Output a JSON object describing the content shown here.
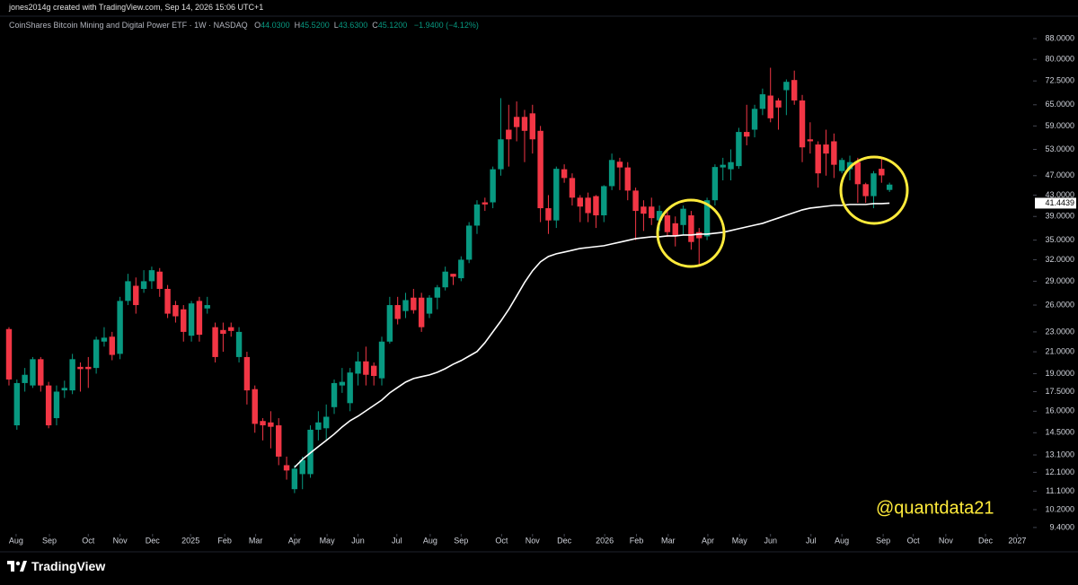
{
  "credit": "jones2014g created with TradingView.com, Sep 14, 2026 15:06 UTC+1",
  "brand": "TradingView",
  "chart_data": {
    "type": "candlestick",
    "title": "CoinShares Bitcoin Mining and Digital Power ETF · 1W · NASDAQ",
    "ohlc": [
      {
        "key": "O",
        "value": "44.0300"
      },
      {
        "key": "H",
        "value": "45.5200"
      },
      {
        "key": "L",
        "value": "43.6300"
      },
      {
        "key": "C",
        "value": "45.1200"
      }
    ],
    "change": "−1.9400 (−4.12%)",
    "annotation": "@quantdata21",
    "log_y": true,
    "background": "#000000",
    "categories": [
      null,
      null,
      null,
      null,
      null,
      null,
      null,
      null,
      null,
      null,
      null,
      null,
      null,
      null,
      null,
      null,
      null,
      null,
      null,
      null,
      null,
      null,
      null,
      null,
      null,
      null,
      null,
      null,
      null,
      null,
      null,
      null,
      null,
      null,
      null,
      null,
      null,
      null,
      null,
      null,
      null,
      null,
      null,
      null,
      null,
      null,
      null,
      null,
      null,
      null,
      null,
      null,
      null,
      null,
      null,
      null,
      null,
      null,
      null,
      null,
      null,
      null,
      null,
      null,
      null,
      null,
      null,
      null,
      null,
      null,
      null,
      null,
      null,
      null,
      null,
      null,
      null,
      null,
      null,
      null,
      null,
      null,
      null,
      null,
      null,
      null,
      null,
      null,
      null,
      null,
      null,
      null,
      null,
      null,
      null,
      null,
      null,
      null,
      null,
      null,
      null,
      null,
      null,
      null,
      null,
      null,
      null,
      null,
      null,
      null,
      null,
      null
    ],
    "xlim": [
      -1.13,
      129.1
    ],
    "xticks": [
      {
        "value": 0.9,
        "label": "Aug"
      },
      {
        "value": 5.1,
        "label": "Sep"
      },
      {
        "value": 10.0,
        "label": "Oct"
      },
      {
        "value": 14.0,
        "label": "Nov"
      },
      {
        "value": 18.1,
        "label": "Dec"
      },
      {
        "value": 22.9,
        "label": "2025"
      },
      {
        "value": 27.2,
        "label": "Feb"
      },
      {
        "value": 31.1,
        "label": "Mar"
      },
      {
        "value": 36.0,
        "label": "Apr"
      },
      {
        "value": 40.1,
        "label": "May"
      },
      {
        "value": 44.0,
        "label": "Jun"
      },
      {
        "value": 48.9,
        "label": "Jul"
      },
      {
        "value": 53.1,
        "label": "Aug"
      },
      {
        "value": 57.0,
        "label": "Sep"
      },
      {
        "value": 62.1,
        "label": "Oct"
      },
      {
        "value": 66.0,
        "label": "Nov"
      },
      {
        "value": 70.0,
        "label": "Dec"
      },
      {
        "value": 75.1,
        "label": "2026"
      },
      {
        "value": 79.1,
        "label": "Feb"
      },
      {
        "value": 83.1,
        "label": "Mar"
      },
      {
        "value": 88.1,
        "label": "Apr"
      },
      {
        "value": 92.1,
        "label": "May"
      },
      {
        "value": 96.0,
        "label": "Jun"
      },
      {
        "value": 101.1,
        "label": "Jul"
      },
      {
        "value": 105.0,
        "label": "Aug"
      },
      {
        "value": 110.2,
        "label": "Sep"
      },
      {
        "value": 114.0,
        "label": "Oct"
      },
      {
        "value": 118.1,
        "label": "Nov"
      },
      {
        "value": 123.1,
        "label": "Dec"
      },
      {
        "value": 127.1,
        "label": "2027"
      }
    ],
    "ylim": [
      9.13,
      97.5
    ],
    "yticks": [
      {
        "value": 88,
        "label": "88.0000"
      },
      {
        "value": 80,
        "label": "80.0000"
      },
      {
        "value": 72.5,
        "label": "72.5000"
      },
      {
        "value": 65,
        "label": "65.0000"
      },
      {
        "value": 59,
        "label": "59.0000"
      },
      {
        "value": 53,
        "label": "53.0000"
      },
      {
        "value": 47,
        "label": "47.0000"
      },
      {
        "value": 43,
        "label": "43.0000"
      },
      {
        "value": 39,
        "label": "39.0000"
      },
      {
        "value": 35,
        "label": "35.0000"
      },
      {
        "value": 32,
        "label": "32.0000"
      },
      {
        "value": 29,
        "label": "29.0000"
      },
      {
        "value": 26,
        "label": "26.0000"
      },
      {
        "value": 23,
        "label": "23.0000"
      },
      {
        "value": 21,
        "label": "21.0000"
      },
      {
        "value": 19,
        "label": "19.0000"
      },
      {
        "value": 17.5,
        "label": "17.5000"
      },
      {
        "value": 16,
        "label": "16.0000"
      },
      {
        "value": 14.5,
        "label": "14.5000"
      },
      {
        "value": 13.1,
        "label": "13.1000"
      },
      {
        "value": 12.1,
        "label": "12.1000"
      },
      {
        "value": 11.1,
        "label": "11.1000"
      },
      {
        "value": 10.2,
        "label": "10.2000"
      },
      {
        "value": 9.4,
        "label": "9.4000"
      }
    ],
    "series": [
      {
        "type": "candlestick",
        "up_color": "#089981",
        "down_color": "#f23645",
        "open": [
          23.3,
          15,
          18.2,
          18,
          20.3,
          18,
          15.5,
          17.6,
          17.6,
          19.6,
          19.6,
          19.5,
          22,
          22.5,
          20.8,
          26.5,
          28.4,
          28,
          29,
          30.3,
          28,
          26,
          25.5,
          22.6,
          26.5,
          25.6,
          23.5,
          23.2,
          23.5,
          20.5,
          20.5,
          17.7,
          15.3,
          15.2,
          15,
          12.5,
          11.2,
          12,
          12,
          14.7,
          14.8,
          16.3,
          18,
          16.6,
          19,
          20.1,
          19.7,
          18.6,
          22,
          26,
          25.3,
          26.9,
          26.9,
          25,
          26.9,
          28.2,
          30,
          29.4,
          32,
          37.4,
          41.6,
          41.6,
          48.4,
          58,
          61.5,
          61.5,
          62.5,
          57.7,
          40.5,
          38.3,
          48.4,
          46.5,
          42.5,
          42.5,
          42.8,
          39.2,
          44.8,
          50.1,
          48.8,
          43.9,
          40.8,
          40.8,
          38.3,
          39.2,
          37.8,
          37.5,
          39.2,
          36.3,
          35.6,
          42,
          48.8,
          48.4,
          49.1,
          57.4,
          58,
          63.8,
          67.8,
          66.3,
          69.5,
          72.8,
          66.3,
          55.5,
          54.2,
          54.2,
          55,
          48,
          48.4,
          50,
          45.2,
          42.8,
          48.5,
          44.03
        ],
        "high": [
          23.5,
          18.5,
          19.5,
          20.5,
          20.5,
          18.3,
          18,
          18.4,
          20.8,
          20,
          20.5,
          22.5,
          23.5,
          23,
          27,
          30,
          29.5,
          30.5,
          31,
          30.8,
          28.5,
          26.5,
          26,
          26.5,
          27,
          27,
          24,
          24,
          24,
          23.5,
          21,
          18,
          15.5,
          16,
          15.5,
          13,
          12.5,
          13,
          15,
          16,
          16.5,
          18.5,
          19.5,
          19.5,
          21,
          21.5,
          20,
          22.5,
          27,
          27,
          27.5,
          28,
          27.5,
          27.2,
          28.5,
          31,
          30,
          32.5,
          38,
          42,
          42.5,
          49,
          67,
          65,
          66,
          63.5,
          65,
          59,
          43,
          49,
          49.5,
          47.5,
          43,
          43.5,
          43,
          45,
          52,
          51,
          50,
          44.5,
          42,
          42.5,
          41,
          40,
          39,
          41,
          40,
          37,
          42.5,
          49.5,
          51,
          53,
          58.5,
          65,
          65,
          70,
          77,
          67,
          73,
          76,
          68,
          60,
          55,
          58,
          57,
          51,
          51.5,
          51,
          45.5,
          48,
          51,
          45.52
        ],
        "low": [
          18,
          14.7,
          17.5,
          17.8,
          17.5,
          14.8,
          15,
          17,
          17.3,
          17.5,
          17.8,
          19,
          21.5,
          20.2,
          20.3,
          26,
          25,
          27.5,
          28,
          27,
          24.5,
          24,
          22,
          22,
          22,
          25,
          20,
          21,
          22.5,
          20,
          16.5,
          14.5,
          14,
          13.5,
          12.5,
          11.7,
          11,
          11.2,
          11.8,
          14,
          14,
          15.8,
          17.4,
          16,
          18,
          18,
          18,
          18,
          21.8,
          23.8,
          24.5,
          25,
          23,
          24.5,
          25.5,
          27.8,
          28.5,
          29,
          31.5,
          36,
          40,
          40.5,
          47,
          49,
          55,
          50,
          52,
          38,
          36,
          37,
          45.5,
          41,
          38,
          38,
          37,
          38,
          44,
          44,
          42,
          35,
          36.5,
          37.5,
          36.5,
          35.5,
          34,
          35.8,
          33.5,
          31,
          35,
          41,
          46,
          46,
          48.5,
          54,
          56,
          62,
          60,
          58,
          62,
          65,
          50,
          52,
          44.5,
          47,
          46.5,
          47.5,
          46,
          41.5,
          41.5,
          40.5,
          45.5,
          43.63
        ],
        "close": [
          18.5,
          18.2,
          18.9,
          20.3,
          18,
          15,
          17.5,
          17.8,
          20.3,
          19.4,
          19.4,
          22.2,
          22.4,
          20.7,
          26.5,
          29,
          26,
          29,
          30.5,
          28,
          25,
          24.7,
          23,
          26.2,
          22.7,
          26,
          20.5,
          22.8,
          23.1,
          23,
          17.6,
          15.1,
          15,
          14.9,
          13,
          12.2,
          12.3,
          12.8,
          14.7,
          15.2,
          15.6,
          18.2,
          18.3,
          19.1,
          20.1,
          18.9,
          18.8,
          22,
          26,
          24.4,
          26.6,
          25.4,
          23.5,
          26.9,
          28.2,
          30.3,
          29.6,
          32,
          37.4,
          41.2,
          41.2,
          48.4,
          55.5,
          55.5,
          58.7,
          57.7,
          55.5,
          40.5,
          38.3,
          48.5,
          46.5,
          42.5,
          40.8,
          39.6,
          39.2,
          44.8,
          50.5,
          48.8,
          43.9,
          40,
          39.5,
          38.7,
          40,
          36.3,
          35.6,
          40.4,
          34.7,
          35.3,
          42,
          48.9,
          49.4,
          50,
          57.4,
          56.2,
          63.8,
          68.2,
          61.1,
          64.2,
          72.2,
          66.3,
          53.5,
          55,
          47.5,
          52,
          49.4,
          50.5,
          50,
          45.2,
          42.8,
          47.5,
          47.06,
          45.12
        ]
      },
      {
        "type": "line",
        "color": "#ffffff",
        "values": [
          null,
          null,
          null,
          null,
          null,
          null,
          null,
          null,
          null,
          null,
          null,
          null,
          null,
          null,
          null,
          null,
          null,
          null,
          null,
          null,
          null,
          null,
          null,
          null,
          null,
          null,
          null,
          null,
          null,
          null,
          null,
          null,
          null,
          null,
          null,
          null,
          12.38,
          12.84,
          13.22,
          13.61,
          14.0,
          14.41,
          14.89,
          15.32,
          15.64,
          16.03,
          16.43,
          16.84,
          17.4,
          17.84,
          18.28,
          18.58,
          18.74,
          18.89,
          19.12,
          19.44,
          19.84,
          20.17,
          20.59,
          21.02,
          21.89,
          23.0,
          24.16,
          25.49,
          27.1,
          28.83,
          30.41,
          31.68,
          32.47,
          32.87,
          33.14,
          33.41,
          33.69,
          33.83,
          33.97,
          34.11,
          34.39,
          34.67,
          34.95,
          35.24,
          35.39,
          35.53,
          35.53,
          35.68,
          35.68,
          35.82,
          35.82,
          35.97,
          35.97,
          36.12,
          36.27,
          36.57,
          36.88,
          37.18,
          37.49,
          37.79,
          38.26,
          38.73,
          39.21,
          39.7,
          40.19,
          40.52,
          40.69,
          40.86,
          41.03,
          41.03,
          41.2,
          41.2,
          41.2,
          41.36,
          41.36,
          41.4439
        ]
      }
    ]
  }
}
